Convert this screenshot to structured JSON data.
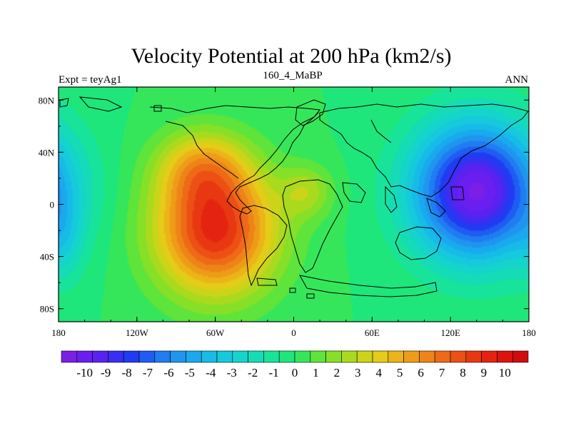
{
  "chart_data": {
    "type": "heatmap",
    "title": "Velocity Potential at 200 hPa (km2/s)",
    "subtitle_left": "Expt = teyAg1",
    "subtitle_center": "160_4_MaBP",
    "subtitle_right": "ANN",
    "x_ticks": [
      {
        "value": -180,
        "label": "180"
      },
      {
        "value": -120,
        "label": "120W"
      },
      {
        "value": -60,
        "label": "60W"
      },
      {
        "value": 0,
        "label": "0"
      },
      {
        "value": 60,
        "label": "60E"
      },
      {
        "value": 120,
        "label": "120E"
      },
      {
        "value": 180,
        "label": "180"
      }
    ],
    "y_ticks": [
      {
        "value": 80,
        "label": "80N"
      },
      {
        "value": 40,
        "label": "40N"
      },
      {
        "value": 0,
        "label": "0"
      },
      {
        "value": -40,
        "label": "40S"
      },
      {
        "value": -80,
        "label": "80S"
      }
    ],
    "xlim": [
      -180,
      180
    ],
    "ylim": [
      -90,
      90
    ],
    "colorbar": {
      "min": -10,
      "max": 10,
      "step": 0.5,
      "labels": [
        "-10",
        "-9",
        "-8",
        "-7",
        "-6",
        "-5",
        "-4",
        "-3",
        "-2",
        "-1",
        "0",
        "1",
        "2",
        "3",
        "4",
        "5",
        "6",
        "7",
        "8",
        "9",
        "10"
      ]
    },
    "features": [
      {
        "name": "maximum",
        "lon": -60,
        "lat": -20,
        "value": 10
      },
      {
        "name": "minimum",
        "lon": 140,
        "lat": 10,
        "value": -10
      }
    ]
  },
  "colors": {
    "palette": [
      "#7b1fe6",
      "#6a1ff0",
      "#5a22f0",
      "#3a2ef2",
      "#1f3cf2",
      "#1f5cf2",
      "#1f7cf2",
      "#1f95f0",
      "#19a9ee",
      "#16bbe8",
      "#16c9dc",
      "#14d4cc",
      "#15dcb6",
      "#18e39a",
      "#1ee67a",
      "#36e65a",
      "#5ee43a",
      "#86e028",
      "#aada1e",
      "#ccd41a",
      "#e4cc18",
      "#ecb418",
      "#ee9c18",
      "#ee8418",
      "#ee6a16",
      "#ec5014",
      "#e83812",
      "#e42410",
      "#dc140e",
      "#d00c0c"
    ]
  }
}
